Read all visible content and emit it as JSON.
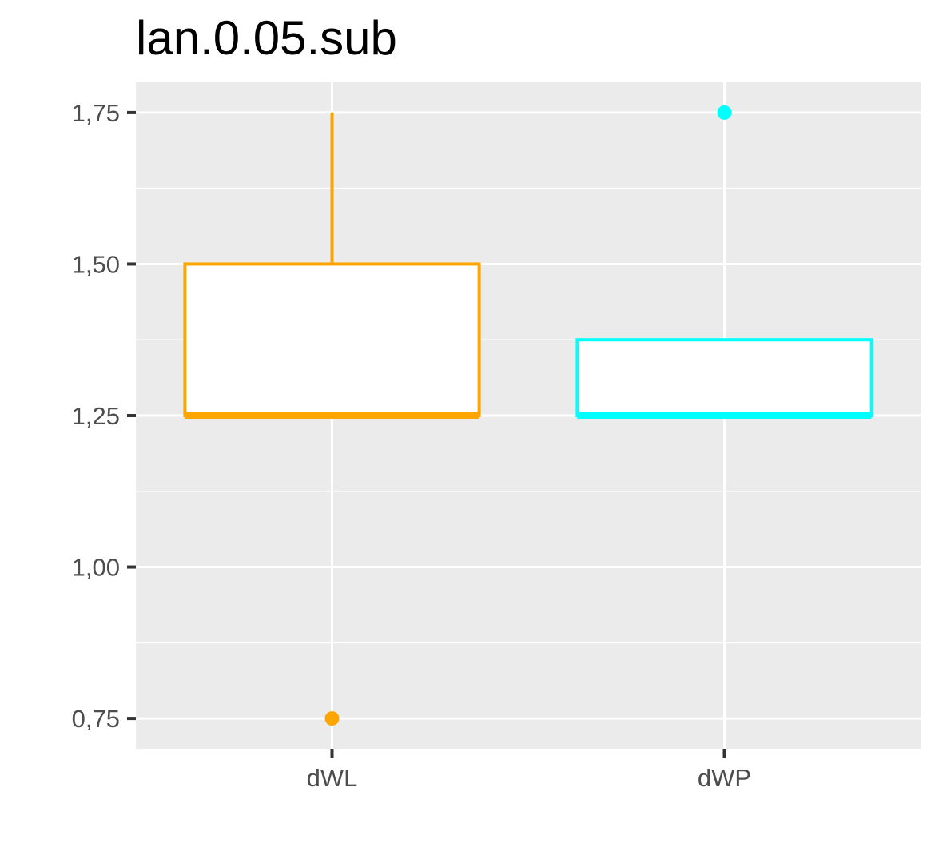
{
  "chart_data": {
    "type": "box",
    "title": "lan.0.05.sub",
    "xlabel": "",
    "ylabel": "",
    "categories": [
      "dWL",
      "dWP"
    ],
    "ylim": [
      0.7,
      1.8
    ],
    "yticks": [
      0.75,
      1.0,
      1.25,
      1.5,
      1.75
    ],
    "ytick_labels": [
      "0,75",
      "1,00",
      "1,25",
      "1,50",
      "1,75"
    ],
    "grid": true,
    "legend": "none",
    "boxes": [
      {
        "category": "dWL",
        "q1": 1.25,
        "median": 1.25,
        "q3": 1.5,
        "whisker_low": 1.25,
        "whisker_high": 1.75,
        "outliers": [
          0.75
        ],
        "color": "#FFA500"
      },
      {
        "category": "dWP",
        "q1": 1.25,
        "median": 1.25,
        "q3": 1.375,
        "whisker_low": 1.25,
        "whisker_high": 1.375,
        "outliers": [
          1.75
        ],
        "color": "#00FFFF"
      }
    ],
    "panel_background": "#EBEBEB",
    "grid_color": "#FFFFFF"
  }
}
